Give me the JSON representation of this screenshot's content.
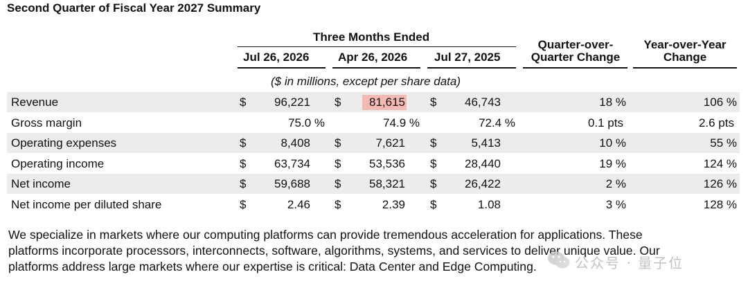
{
  "title": "Second Quarter of Fiscal Year 2027 Summary",
  "header": {
    "group_label": "Three Months Ended",
    "periods": [
      "Jul 26, 2026",
      "Apr 26, 2026",
      "Jul 27, 2025"
    ],
    "qoq_line1": "Quarter-over-",
    "qoq_line2": "Quarter Change",
    "yoy_line1": "Year-over-Year",
    "yoy_line2": "Change",
    "units_note": "($ in millions, except per share data)"
  },
  "rows": [
    {
      "label": "Revenue",
      "v1": "96,221",
      "v2": "81,615",
      "v3": "46,743",
      "qoq": "18 %",
      "yoy": "106 %",
      "dollar": "$"
    },
    {
      "label": "Gross margin",
      "v1": "75.0 %",
      "v2": "74.9 %",
      "v3": "72.4 %",
      "qoq": "0.1 pts",
      "yoy": "2.6 pts",
      "dollar": ""
    },
    {
      "label": "Operating expenses",
      "v1": "8,408",
      "v2": "7,621",
      "v3": "5,413",
      "qoq": "10 %",
      "yoy": "55 %",
      "dollar": "$"
    },
    {
      "label": "Operating income",
      "v1": "63,734",
      "v2": "53,536",
      "v3": "28,440",
      "qoq": "19 %",
      "yoy": "124 %",
      "dollar": "$"
    },
    {
      "label": "Net income",
      "v1": "59,688",
      "v2": "58,321",
      "v3": "26,422",
      "qoq": "2 %",
      "yoy": "126 %",
      "dollar": "$"
    },
    {
      "label": "Net income per diluted share",
      "v1": "2.46",
      "v2": "2.39",
      "v3": "1.08",
      "qoq": "3 %",
      "yoy": "128 %",
      "dollar": "$"
    }
  ],
  "highlight_color": "#f5b9b4",
  "paragraph": [
    "We specialize in markets where our computing platforms can provide tremendous acceleration for applications. These",
    "platforms incorporate processors, interconnects, software, algorithms, systems, and services to deliver unique value. Our",
    "platforms address large markets where our expertise is critical: Data Center and Edge Computing."
  ],
  "watermark": {
    "icon": "wechat-icon",
    "text": "公众号 · 量子位"
  }
}
